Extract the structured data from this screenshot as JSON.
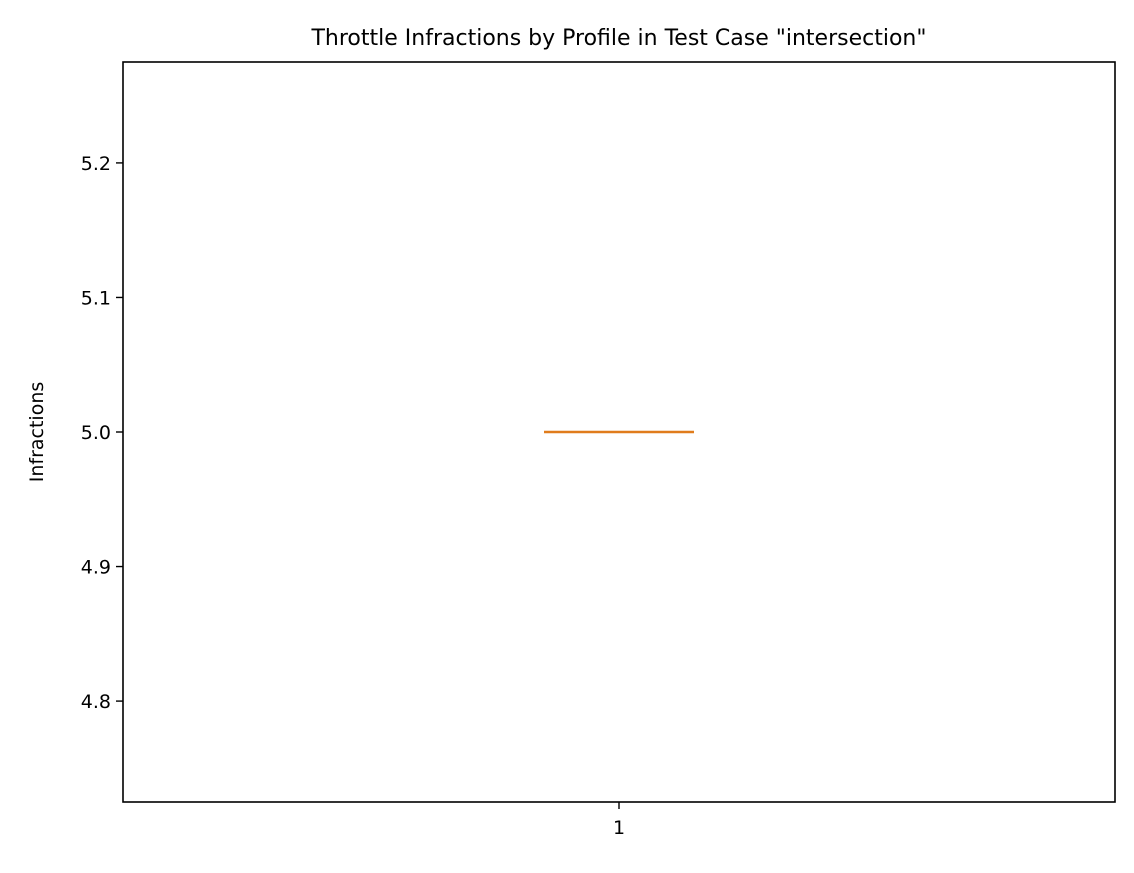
{
  "chart_data": {
    "type": "box",
    "title": "Throttle Infractions by Profile in Test Case \"intersection\"",
    "xlabel": "",
    "ylabel": "Infractions",
    "categories": [
      "1"
    ],
    "boxes": [
      {
        "category": "1",
        "min": 5.0,
        "q1": 5.0,
        "median": 5.0,
        "q3": 5.0,
        "max": 5.0
      }
    ],
    "ylim": [
      4.725,
      5.275
    ],
    "yticks": [
      4.8,
      4.9,
      5.0,
      5.1,
      5.2
    ],
    "ytick_labels": [
      "4.8",
      "4.9",
      "5.0",
      "5.1",
      "5.2"
    ],
    "grid": false,
    "colors": {
      "median": "#e07c1c",
      "box": "#000000",
      "axis": "#000000"
    }
  }
}
